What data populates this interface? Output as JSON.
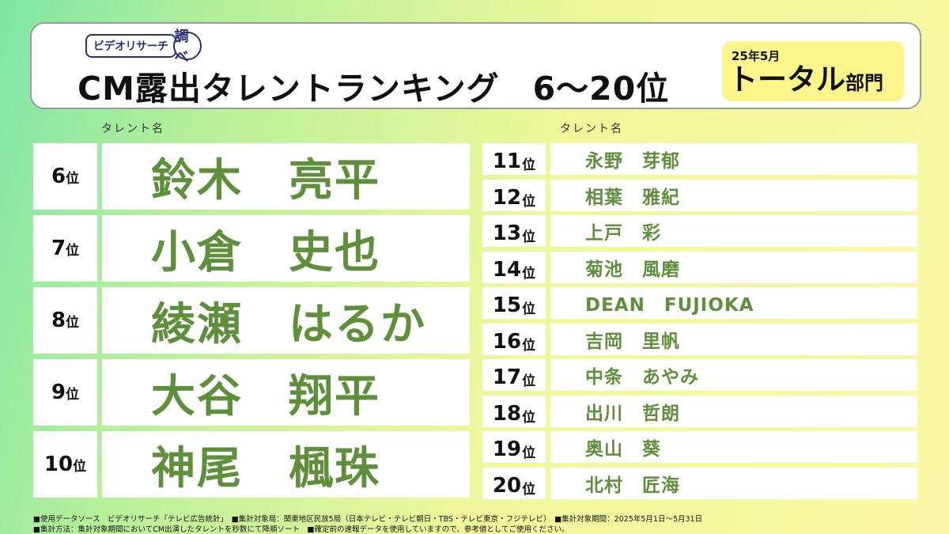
{
  "header": {
    "logo_text": "ビデオリサーチ",
    "logo_mark": "調べ",
    "title": "CM露出タレントランキング　6～20位",
    "badge_date": "25年5月",
    "badge_main": "トータル",
    "badge_sub": "部門"
  },
  "labels": {
    "left_column": "タレント名",
    "right_column": "タレント名"
  },
  "rank_suffix": "位",
  "top_rows": [
    {
      "rank": "6",
      "name": "鈴木　亮平"
    },
    {
      "rank": "7",
      "name": "小倉　史也"
    },
    {
      "rank": "8",
      "name": "綾瀬　はるか"
    },
    {
      "rank": "9",
      "name": "大谷　翔平"
    },
    {
      "rank": "10",
      "name": "神尾　楓珠"
    }
  ],
  "lower_rows": [
    {
      "rank": "11",
      "name": "永野　芽郁"
    },
    {
      "rank": "12",
      "name": "相葉　雅紀"
    },
    {
      "rank": "13",
      "name": "上戸　彩"
    },
    {
      "rank": "14",
      "name": "菊池　風磨"
    },
    {
      "rank": "15",
      "name": "DEAN　FUJIOKA"
    },
    {
      "rank": "16",
      "name": "吉岡　里帆"
    },
    {
      "rank": "17",
      "name": "中条　あやみ"
    },
    {
      "rank": "18",
      "name": "出川　哲朗"
    },
    {
      "rank": "19",
      "name": "奥山　葵"
    },
    {
      "rank": "20",
      "name": "北村　匠海"
    }
  ],
  "footnotes": {
    "line1": "■使用データソース　ビデオリサーチ「テレビ広告統計」　■集計対象局：関東地区民放5局（日本テレビ・テレビ朝日・TBS・テレビ東京・フジテレビ）　■集計対象期間：2025年5月1日～5月31日",
    "line2": "■集計方法：集計対象期間においてCM出演したタレントを秒数にて降順ソート　■確定前の速報データを使用していますので、参考値としてご使用ください。"
  }
}
